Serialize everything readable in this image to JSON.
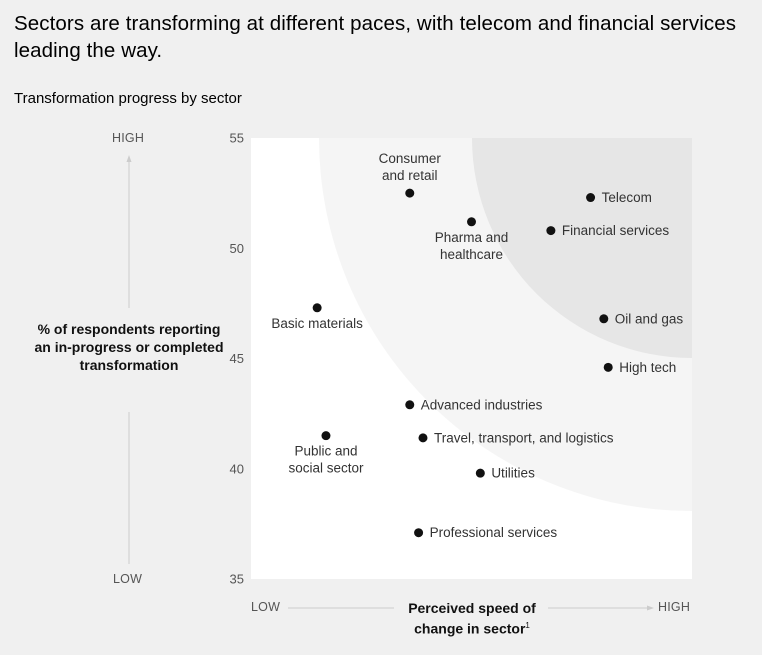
{
  "headline": "Sectors are transforming at different paces, with telecom and financial services leading the way.",
  "subtitle": "Transformation progress by sector",
  "colors": {
    "background": "#f0f0f0",
    "plot_zone_low": "#ffffff",
    "plot_zone_mid": "#f5f5f5",
    "plot_zone_high": "#e6e6e6",
    "point": "#111111",
    "axis_text": "#555555"
  },
  "chart_data": {
    "type": "scatter",
    "title": "Transformation progress by sector",
    "ylabel": "% of respondents reporting an in-progress or completed transformation",
    "xlabel": "Perceived speed of change in sector",
    "xlabel_footnote": "1",
    "y_high_label": "HIGH",
    "y_low_label": "LOW",
    "x_low_label": "LOW",
    "x_high_label": "HIGH",
    "ylim": [
      35,
      55
    ],
    "yticks": [
      35,
      40,
      45,
      50,
      55
    ],
    "xlim": [
      0,
      10
    ],
    "grid": false,
    "points": [
      {
        "label": "Consumer and retail",
        "x": 3.6,
        "y": 52.5,
        "label_pos": "above"
      },
      {
        "label": "Pharma and healthcare",
        "x": 5.0,
        "y": 51.2,
        "label_pos": "below"
      },
      {
        "label": "Telecom",
        "x": 7.7,
        "y": 52.3,
        "label_pos": "right"
      },
      {
        "label": "Financial services",
        "x": 6.8,
        "y": 50.8,
        "label_pos": "right"
      },
      {
        "label": "Basic materials",
        "x": 1.5,
        "y": 47.3,
        "label_pos": "below"
      },
      {
        "label": "Oil and gas",
        "x": 8.0,
        "y": 46.8,
        "label_pos": "right"
      },
      {
        "label": "High tech",
        "x": 8.1,
        "y": 44.6,
        "label_pos": "right"
      },
      {
        "label": "Advanced industries",
        "x": 3.6,
        "y": 42.9,
        "label_pos": "right"
      },
      {
        "label": "Travel, transport, and logistics",
        "x": 3.9,
        "y": 41.4,
        "label_pos": "right"
      },
      {
        "label": "Public and social sector",
        "x": 1.7,
        "y": 41.5,
        "label_pos": "below"
      },
      {
        "label": "Utilities",
        "x": 5.2,
        "y": 39.8,
        "label_pos": "right"
      },
      {
        "label": "Professional services",
        "x": 3.8,
        "y": 37.1,
        "label_pos": "right"
      }
    ]
  }
}
